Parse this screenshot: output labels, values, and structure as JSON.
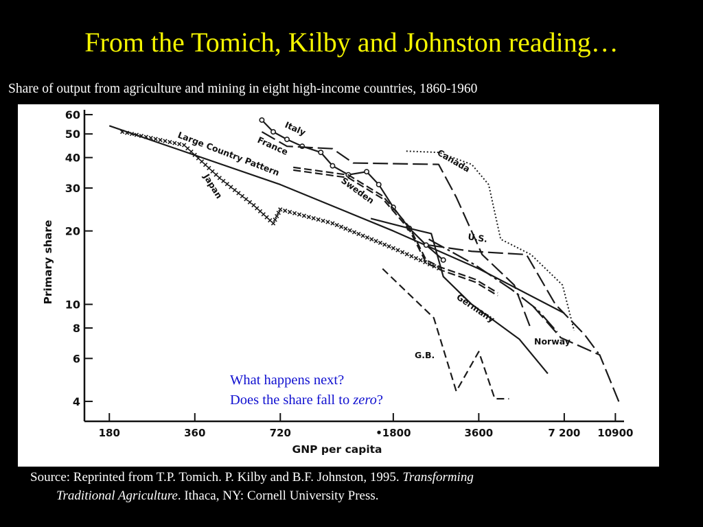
{
  "slide": {
    "title": "From the Tomich, Kilby and Johnston reading…",
    "subtitle": "Share of output from agriculture and mining in eight high-income countries, 1860-1960",
    "callout_line1": "What happens next?",
    "callout_line2_prefix": "Does the share fall to ",
    "callout_line2_emph": "zero",
    "callout_line2_suffix": "?",
    "source_prefix": "Source:  Reprinted from T.P. Tomich. P. Kilby and B.F. Johnston,   1995.  ",
    "source_title_part1": "Transforming",
    "source_title_part2": "Traditional Agriculture",
    "source_suffix": ".  Ithaca, NY: Cornell University Press."
  },
  "colors": {
    "title": "#f5f500",
    "callout": "#1010d0",
    "background": "#000000",
    "panel": "#ffffff"
  },
  "chart_data": {
    "type": "line",
    "x_scale": "log",
    "y_scale": "log",
    "xlabel": "GNP per capita",
    "ylabel": "Primary share",
    "xlim": [
      170,
      11500
    ],
    "ylim": [
      3.4,
      62
    ],
    "x_ticks": [
      180,
      360,
      720,
      1800,
      3600,
      7200,
      10900
    ],
    "x_tick_labels": [
      "180",
      "360",
      "720",
      "•1800",
      "3600",
      "7 200",
      "10900"
    ],
    "y_ticks": [
      4,
      6,
      8,
      10,
      20,
      30,
      40,
      50,
      60
    ],
    "series": [
      {
        "name": "Large Country Pattern",
        "style": "solid",
        "x": [
          180,
          720,
          1800,
          3600,
          7200
        ],
        "y": [
          54,
          31,
          20,
          14,
          9.2
        ]
      },
      {
        "name": "Japan",
        "style": "crosses",
        "x": [
          200,
          330,
          440,
          580,
          680,
          700,
          720,
          1100,
          1800,
          2700
        ],
        "y": [
          51,
          45,
          33,
          25.5,
          21.5,
          23,
          24.5,
          21.5,
          17,
          13.8
        ]
      },
      {
        "name": "Italy",
        "style": "circles",
        "x": [
          620,
          680,
          760,
          860,
          1000,
          1100,
          1250,
          1450,
          1600,
          1800,
          2050,
          2350,
          2700
        ],
        "y": [
          57,
          51,
          47.5,
          44.5,
          42,
          37,
          34,
          35,
          31,
          25,
          20.5,
          17.5,
          15.2
        ]
      },
      {
        "name": "France",
        "style": "long-dash",
        "x": [
          620,
          760,
          1100,
          1300,
          2600,
          3000,
          3700,
          4800,
          5500
        ],
        "y": [
          51,
          44.5,
          43.5,
          38,
          37.5,
          27.5,
          16,
          12,
          7.9
        ]
      },
      {
        "name": "Sweden",
        "style": "double-dash",
        "x": [
          800,
          1250,
          1650,
          2050,
          2350,
          2650,
          3500,
          4200
        ],
        "y": [
          36,
          33.5,
          27.5,
          20.5,
          15,
          14,
          12.5,
          11
        ]
      },
      {
        "name": "Canada",
        "style": "dotted",
        "x": [
          2000,
          2600,
          3400,
          3900,
          4300,
          5500,
          7100,
          7800
        ],
        "y": [
          42.5,
          42,
          37.5,
          31,
          18.5,
          16,
          12,
          7.8
        ]
      },
      {
        "name": "U.S.",
        "style": "long-dash",
        "x": [
          2400,
          3400,
          5300,
          6700,
          8500,
          9500
        ],
        "y": [
          17.5,
          16.5,
          16,
          10,
          7.5,
          6.3
        ]
      },
      {
        "name": "Germany",
        "style": "solid",
        "x": [
          1500,
          2050,
          2450,
          2700,
          3400,
          5000,
          6300
        ],
        "y": [
          22.5,
          20.5,
          19.5,
          13,
          10,
          7.2,
          5.2
        ]
      },
      {
        "name": "Norway",
        "style": "long-dash-dot",
        "x": [
          2400,
          3500,
          4700,
          5800,
          6800
        ],
        "y": [
          18.5,
          14.5,
          11.5,
          9.5,
          7.7
        ]
      },
      {
        "name": "G.B.",
        "style": "dashed",
        "x": [
          1650,
          2500,
          3000,
          3600,
          4100,
          4600
        ],
        "y": [
          14,
          8.8,
          4.4,
          6.4,
          4.1,
          4.1
        ]
      },
      {
        "name": "",
        "style": "long-dash",
        "x": [
          5600,
          7000,
          9600,
          11300
        ],
        "y": [
          9.8,
          7.3,
          6.2,
          3.9
        ]
      }
    ]
  }
}
